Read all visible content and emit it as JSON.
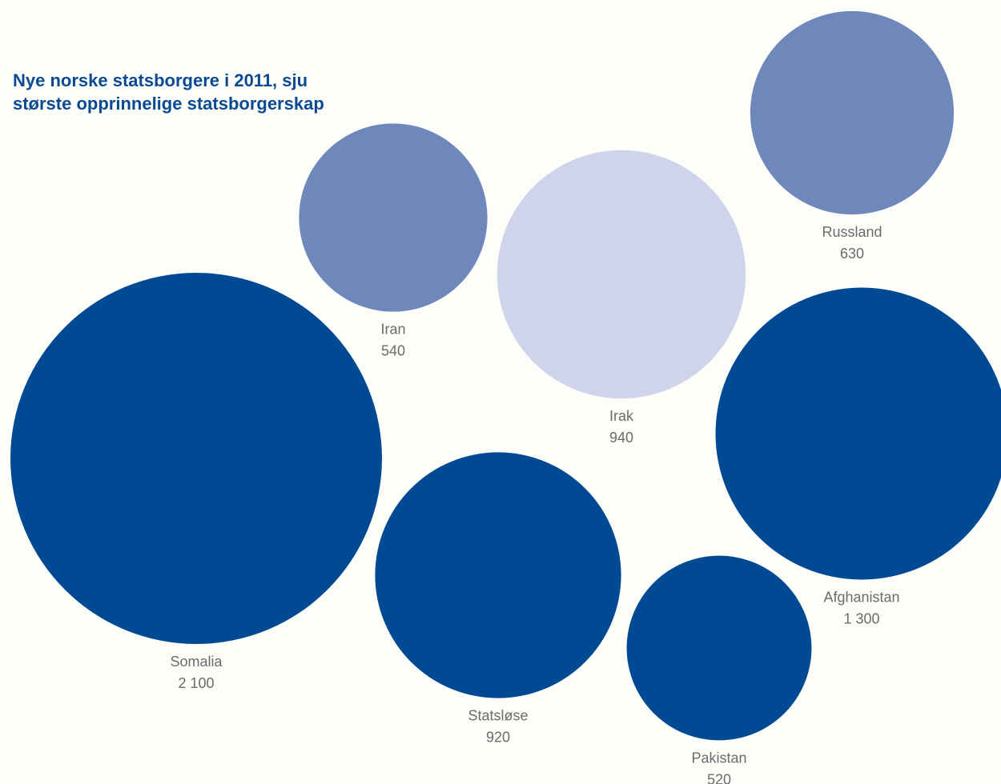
{
  "chart_data": {
    "type": "bubble",
    "title_lines": [
      "Nye norske statsborgere i 2011, sju",
      "største opprinnelige statsborgerskap"
    ],
    "series": [
      {
        "label": "Somalia",
        "value_label": "2 100",
        "value": 2100,
        "color": "#004a93"
      },
      {
        "label": "Afghanistan",
        "value_label": "1 300",
        "value": 1300,
        "color": "#004a93"
      },
      {
        "label": "Irak",
        "value_label": "940",
        "value": 940,
        "color": "#cfd4ea"
      },
      {
        "label": "Statsløse",
        "value_label": "920",
        "value": 920,
        "color": "#004a93"
      },
      {
        "label": "Russland",
        "value_label": "630",
        "value": 630,
        "color": "#6e88bb"
      },
      {
        "label": "Iran",
        "value_label": "540",
        "value": 540,
        "color": "#6e88bb"
      },
      {
        "label": "Pakistan",
        "value_label": "520",
        "value": 520,
        "color": "#004a93"
      }
    ]
  }
}
